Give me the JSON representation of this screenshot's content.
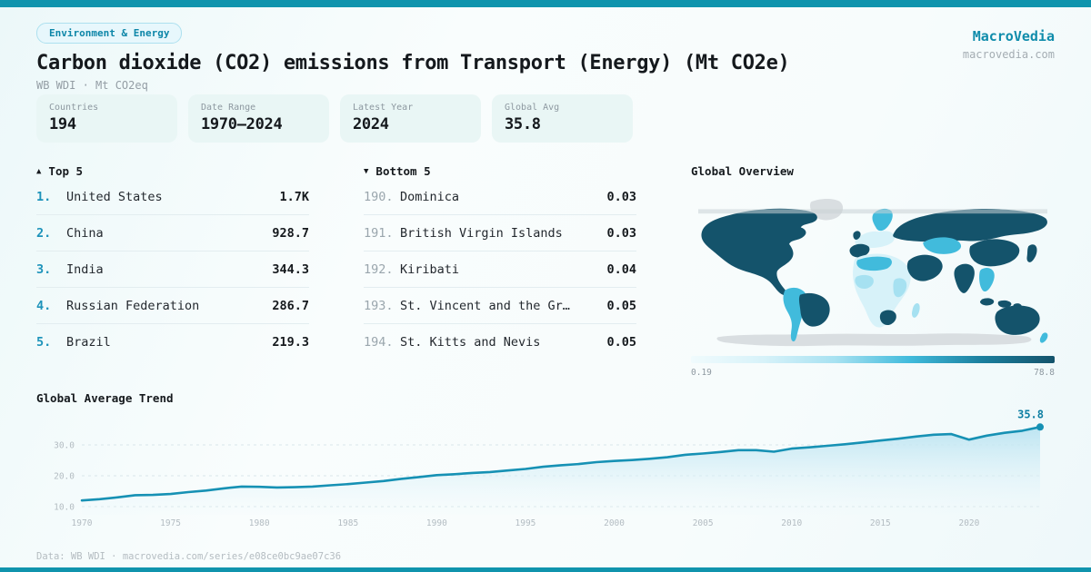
{
  "colors": {
    "accent": "#1094ad",
    "rank_accent": "#1d93ba",
    "text_dark": "#15191d",
    "text_gray": "#949ea5",
    "card_bg": "#e9f6f5",
    "divider": "#e3edf0"
  },
  "header": {
    "badge": "Environment & Energy",
    "title": "Carbon dioxide (CO2) emissions from Transport (Energy) (Mt CO2e)",
    "subtitle": "WB WDI · Mt CO2eq",
    "brand": "MacroVedia",
    "brand_domain": "macrovedia.com"
  },
  "stats": [
    {
      "label": "Countries",
      "value": "194"
    },
    {
      "label": "Date Range",
      "value": "1970—2024"
    },
    {
      "label": "Latest Year",
      "value": "2024"
    },
    {
      "label": "Global Avg",
      "value": "35.8"
    }
  ],
  "top5": {
    "icon": "▲",
    "title": "Top 5",
    "rows": [
      {
        "rank": "1.",
        "name": "United States",
        "value": "1.7K"
      },
      {
        "rank": "2.",
        "name": "China",
        "value": "928.7"
      },
      {
        "rank": "3.",
        "name": "India",
        "value": "344.3"
      },
      {
        "rank": "4.",
        "name": "Russian Federation",
        "value": "286.7"
      },
      {
        "rank": "5.",
        "name": "Brazil",
        "value": "219.3"
      }
    ]
  },
  "bottom5": {
    "icon": "▼",
    "title": "Bottom 5",
    "rows": [
      {
        "rank": "190.",
        "name": "Dominica",
        "value": "0.03"
      },
      {
        "rank": "191.",
        "name": "British Virgin Islands",
        "value": "0.03"
      },
      {
        "rank": "192.",
        "name": "Kiribati",
        "value": "0.04"
      },
      {
        "rank": "193.",
        "name": "St. Vincent and the Gr…",
        "value": "0.05"
      },
      {
        "rank": "194.",
        "name": "St. Kitts and Nevis",
        "value": "0.05"
      }
    ]
  },
  "map": {
    "title": "Global Overview",
    "legend_min": "0.19",
    "legend_max": "78.8",
    "fills": {
      "high": "#14536b",
      "mid": "#41bbdc",
      "low": "#a6e1f1",
      "pale": "#d7f2f9",
      "nodata": "#d9dee1"
    }
  },
  "trend": {
    "title": "Global Average Trend"
  },
  "chart_data": {
    "type": "line",
    "title": "Global Average Trend",
    "x_range": [
      1970,
      2024
    ],
    "values": [
      12.0,
      12.4,
      13.0,
      13.7,
      13.8,
      14.1,
      14.7,
      15.2,
      15.9,
      16.5,
      16.4,
      16.2,
      16.3,
      16.5,
      16.9,
      17.3,
      17.8,
      18.3,
      19.0,
      19.6,
      20.2,
      20.5,
      20.9,
      21.2,
      21.7,
      22.2,
      22.9,
      23.4,
      23.8,
      24.4,
      24.8,
      25.1,
      25.5,
      26.0,
      26.8,
      27.2,
      27.7,
      28.3,
      28.3,
      27.8,
      28.8,
      29.2,
      29.7,
      30.2,
      30.8,
      31.4,
      32.0,
      32.7,
      33.3,
      33.5,
      31.7,
      33.0,
      33.9,
      34.6,
      35.8
    ],
    "end_label": "35.8",
    "y_ticks": [
      10,
      20,
      30
    ],
    "y_tick_labels": [
      "10.0",
      "20.0",
      "30.0"
    ],
    "x_ticks": [
      1970,
      1975,
      1980,
      1985,
      1990,
      1995,
      2000,
      2005,
      2010,
      2015,
      2020
    ],
    "ylim": [
      7,
      38
    ],
    "line_color": "#1691b4",
    "grid": "dashed-horizontal",
    "legend": "none",
    "xlabel": "",
    "ylabel": ""
  },
  "footer": {
    "text": "Data: WB WDI · macrovedia.com/series/e08ce0bc9ae07c36"
  }
}
